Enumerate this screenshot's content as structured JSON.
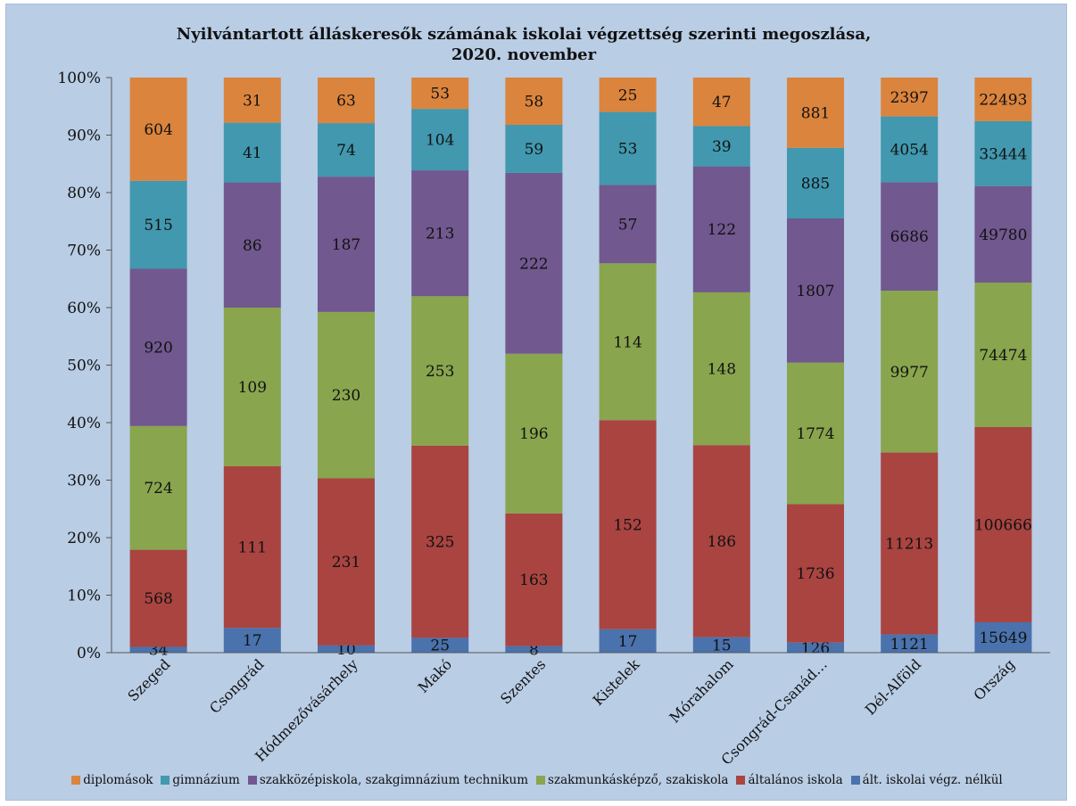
{
  "chart_data": {
    "type": "bar",
    "stacked": "percent",
    "title_line1": "Nyilvántartott álláskeresők számának iskolai végzettség szerinti megoszlása,",
    "title_line2": "2020. november",
    "categories": [
      "Szeged",
      "Csongrád",
      "Hódmezővásárhely",
      "Makó",
      "Szentes",
      "Kistelek",
      "Mórahalom",
      "Csongrád-Csanád…",
      "Dél-Alföld",
      "Ország"
    ],
    "yticks": [
      "0%",
      "10%",
      "20%",
      "30%",
      "40%",
      "50%",
      "60%",
      "70%",
      "80%",
      "90%",
      "100%"
    ],
    "ylim": [
      0,
      100
    ],
    "grid": false,
    "legend_position": "bottom",
    "series": [
      {
        "name": "ált. iskolai végz. nélkül",
        "color": "#4a72ac",
        "values": [
          34,
          17,
          10,
          25,
          8,
          17,
          15,
          126,
          1121,
          15649
        ]
      },
      {
        "name": "általános iskola",
        "color": "#a94441",
        "values": [
          568,
          111,
          231,
          325,
          163,
          152,
          186,
          1736,
          11213,
          100666
        ]
      },
      {
        "name": "szakmunkásképző, szakiskola",
        "color": "#89a54e",
        "values": [
          724,
          109,
          230,
          253,
          196,
          114,
          148,
          1774,
          9977,
          74474
        ]
      },
      {
        "name": "szakközépiskola, szakgimnázium technikum",
        "color": "#71588f",
        "values": [
          920,
          86,
          187,
          213,
          222,
          57,
          122,
          1807,
          6686,
          49780
        ]
      },
      {
        "name": "gimnázium",
        "color": "#4198af",
        "values": [
          515,
          41,
          74,
          104,
          59,
          53,
          39,
          885,
          4054,
          33444
        ]
      },
      {
        "name": "diplomások",
        "color": "#db843d",
        "values": [
          604,
          31,
          63,
          53,
          58,
          25,
          47,
          881,
          2397,
          22493
        ]
      }
    ],
    "legend_order": [
      "diplomások",
      "gimnázium",
      "szakközépiskola, szakgimnázium technikum",
      "szakmunkásképző, szakiskola",
      "általános iskola",
      "ált. iskolai végz. nélkül"
    ]
  }
}
